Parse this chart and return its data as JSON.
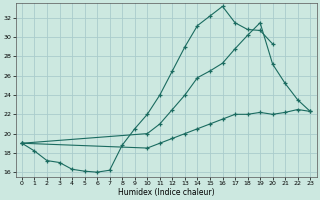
{
  "xlabel": "Humidex (Indice chaleur)",
  "bg_color": "#cce8e0",
  "grid_color": "#aacccc",
  "line_color": "#1a6b60",
  "xlim": [
    -0.5,
    23.5
  ],
  "ylim": [
    15.5,
    33.5
  ],
  "yticks": [
    16,
    18,
    20,
    22,
    24,
    26,
    28,
    30,
    32
  ],
  "xticks": [
    0,
    1,
    2,
    3,
    4,
    5,
    6,
    7,
    8,
    9,
    10,
    11,
    12,
    13,
    14,
    15,
    16,
    17,
    18,
    19,
    20,
    21,
    22,
    23
  ],
  "line1_x": [
    0,
    1,
    2,
    3,
    4,
    5,
    6,
    7,
    8,
    9,
    10,
    11,
    12,
    13,
    14,
    15,
    16,
    17,
    18,
    19,
    20
  ],
  "line1_y": [
    19.0,
    18.2,
    17.2,
    17.0,
    16.3,
    16.1,
    16.0,
    16.2,
    18.8,
    20.5,
    22.0,
    24.0,
    26.5,
    29.0,
    31.2,
    32.2,
    33.2,
    31.5,
    30.8,
    30.7,
    29.3
  ],
  "line2_x": [
    0,
    10,
    11,
    12,
    13,
    14,
    15,
    16,
    17,
    18,
    19,
    20,
    21,
    22,
    23
  ],
  "line2_y": [
    19.0,
    20.0,
    21.0,
    22.5,
    24.0,
    25.8,
    26.5,
    27.3,
    28.8,
    30.2,
    31.5,
    27.2,
    25.2,
    23.5,
    22.3
  ],
  "line3_x": [
    0,
    10,
    11,
    12,
    13,
    14,
    15,
    16,
    17,
    18,
    19,
    20,
    21,
    22,
    23
  ],
  "line3_y": [
    19.0,
    18.5,
    19.0,
    19.5,
    20.0,
    20.5,
    21.0,
    21.5,
    22.0,
    22.0,
    22.2,
    22.0,
    22.2,
    22.5,
    22.3
  ]
}
